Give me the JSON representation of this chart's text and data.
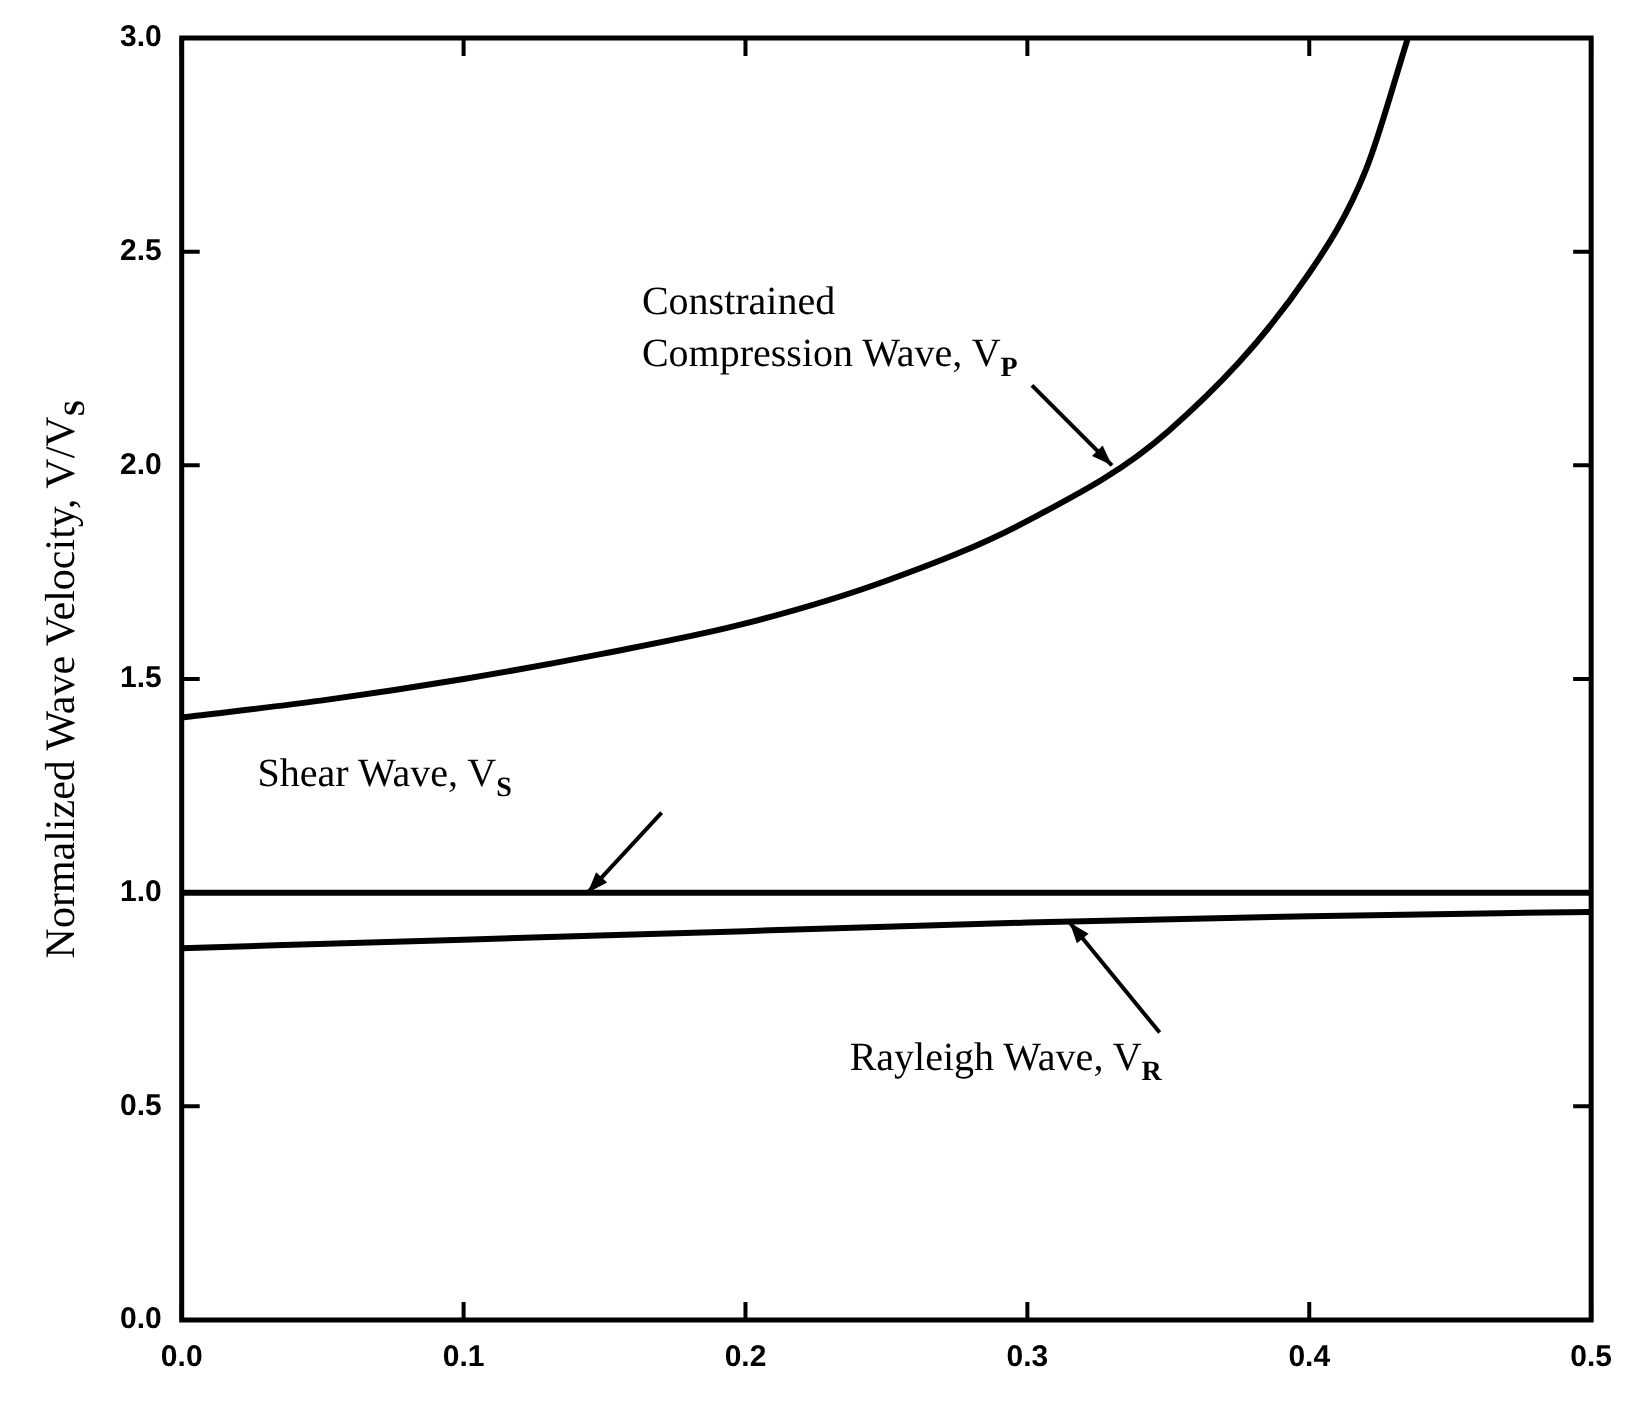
{
  "chart_data": {
    "type": "line",
    "ylabel": "Normalized Wave Velocity, V/V$_{S}$",
    "xlim": [
      0,
      0.5
    ],
    "xticks": [
      {
        "value": 0,
        "label": "0.0"
      },
      0.1,
      0.2,
      0.3,
      0.4,
      0.5
    ],
    "ylim": [
      0,
      3
    ],
    "yticks": [
      {
        "value": 0,
        "label": "0.0"
      },
      0.5,
      {
        "value": 1,
        "label": "1.0"
      },
      1.5,
      {
        "value": 2,
        "label": "2.0"
      },
      2.5,
      {
        "value": 3,
        "label": "3.0"
      }
    ],
    "grid": false,
    "legend": false,
    "marker": "none",
    "line_style": "solid",
    "series": [
      {
        "color": "#000000",
        "x": [
          0,
          0.05,
          0.1,
          0.15,
          0.2,
          0.25,
          0.3,
          0.35,
          0.4,
          0.42,
          0.435
        ],
        "values": [
          1.41,
          1.45,
          1.5,
          1.56,
          1.63,
          1.73,
          1.87,
          2.08,
          2.45,
          2.69,
          3.0
        ]
      },
      {
        "color": "#000000",
        "x": [
          0,
          0.5
        ],
        "values": [
          1.0,
          1.0
        ]
      },
      {
        "color": "#000000",
        "x": [
          0,
          0.1,
          0.2,
          0.3,
          0.4,
          0.5
        ],
        "values": [
          0.87,
          0.89,
          0.91,
          0.93,
          0.945,
          0.955
        ]
      }
    ],
    "annotations": [
      {
        "text": "Constrained\nCompression Wave, V$_{P}$",
        "x": 0.33,
        "y": 2.0
      },
      {
        "text": "Shear Wave, V$_{S}$",
        "x": 0.144,
        "y": 1.0
      },
      {
        "text": "Rayleigh Wave, V$_{R}$",
        "x": 0.315,
        "y": 0.93
      }
    ]
  }
}
